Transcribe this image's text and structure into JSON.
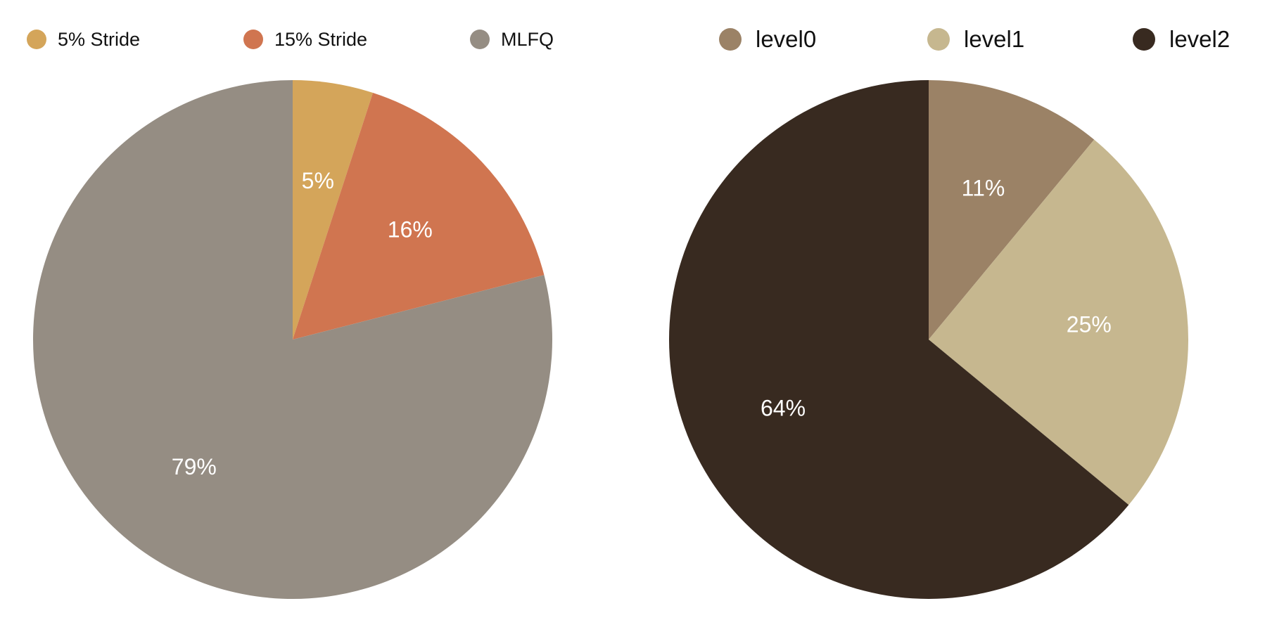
{
  "chart_data": [
    {
      "type": "pie",
      "title": "",
      "legend_position": "top",
      "slices": [
        {
          "name": "5% Stride",
          "value": 5,
          "label": "5%",
          "color": "#D4A55A"
        },
        {
          "name": "15% Stride",
          "value": 16,
          "label": "16%",
          "color": "#D07550"
        },
        {
          "name": "MLFQ",
          "value": 79,
          "label": "79%",
          "color": "#958D83"
        }
      ]
    },
    {
      "type": "pie",
      "title": "",
      "legend_position": "top",
      "slices": [
        {
          "name": "level0",
          "value": 11,
          "label": "11%",
          "color": "#9B8266"
        },
        {
          "name": "level1",
          "value": 25,
          "label": "25%",
          "color": "#C6B78F"
        },
        {
          "name": "level2",
          "value": 64,
          "label": "64%",
          "color": "#382A20"
        }
      ]
    }
  ]
}
